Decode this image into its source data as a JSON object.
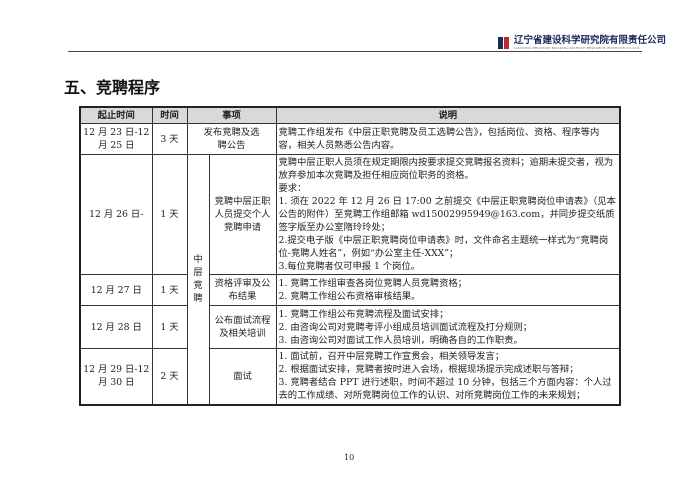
{
  "header": {
    "org_name": "辽宁省建设科学研究院有限责任公司",
    "org_name_en": "LIAONING PROVINCE BUILDING SCIENCE RESEARCH INSTITUTE CO.,LTD.",
    "logo_colors": [
      "#1c2a5a",
      "#c0272d"
    ]
  },
  "title": "五、竞聘程序",
  "table": {
    "headers": [
      "起止时间",
      "时间",
      "事项",
      "说明"
    ],
    "group_label": "中层竞聘",
    "rows": [
      {
        "date": "12 月 23 日-12 月 25 日",
        "duration": "3 天",
        "item": "发布竞聘及选聘公告",
        "desc": [
          "竞聘工作组发布《中层正职竞聘及员工选聘公告》，包括岗位、资格、程序等内容，相关人员熟悉公告内容。"
        ]
      },
      {
        "date": "12 月 26 日-",
        "duration": "1 天",
        "item": "竞聘中层正职人员提交个人竞聘申请",
        "desc": [
          "竞聘中层正职人员须在规定期限内按要求提交竞聘报名资料；逾期未提交者，视为放弃参加本次竞聘及担任相应岗位职务的资格。",
          "要求：",
          "1. 须在 2022 年 12 月 26 日 17:00 之前提交《中层正职竞聘岗位申请表》（见本公告的附件）至竞聘工作组邮箱 wd15002995949@163.com，并同步提交纸质签字版至办公室隋玲玲处；",
          "2.提交电子版《中层正职竞聘岗位申请表》时，文件命名主题统一样式为“竞聘岗位-竞聘人姓名”，例如“办公室主任-XXX”；",
          "3.每位竞聘者仅可申报 1 个岗位。"
        ]
      },
      {
        "date": "12 月 27 日",
        "duration": "1 天",
        "item": "资格评审及公布结果",
        "desc": [
          "1. 竞聘工作组审查各岗位竞聘人员竞聘资格；",
          "2. 竞聘工作组公布资格审核结果。"
        ]
      },
      {
        "date": "12 月 28 日",
        "duration": "1 天",
        "item": "公布面试流程及相关培训",
        "desc": [
          "1. 竞聘工作组公布竞聘流程及面试安排；",
          "2. 由咨询公司对竞聘考评小组成员培训面试流程及打分规则；",
          "3. 由咨询公司对面试工作人员培训，明确各自的工作职责。"
        ]
      },
      {
        "date": "12 月 29 日-12 月 30 日",
        "duration": "2 天",
        "item": "面试",
        "desc": [
          "1. 面试前，召开中层竞聘工作宣贯会，相关领导发言；",
          "2. 根据面试安排，竞聘者按时进入会场，根据现场提示完成述职与答辩；",
          "3. 竞聘者结合 PPT 进行述职，时间不超过 10 分钟，包括三个方面内容：个人过去的工作成绩、对所竞聘岗位工作的认识、对所竞聘岗位工作的未来规划；"
        ]
      }
    ]
  },
  "page_number": "10"
}
